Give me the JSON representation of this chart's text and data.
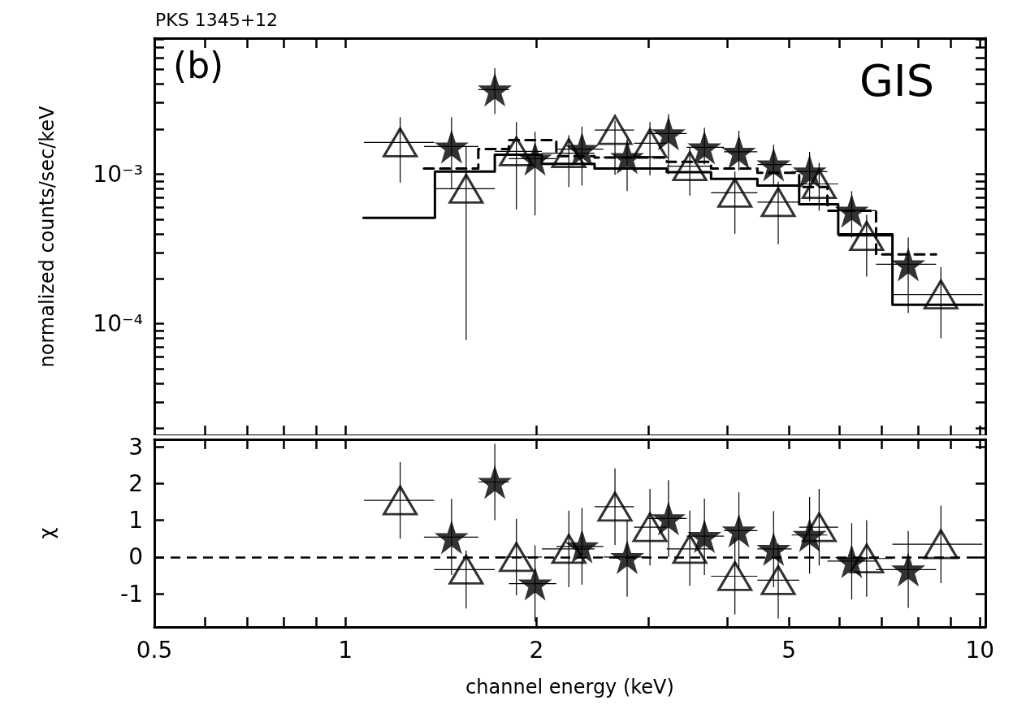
{
  "chart_data": [
    {
      "type": "scatter",
      "title": "PKS 1345+12",
      "ylabel": "normalized counts/sec/keV",
      "annotations": [
        "(b)",
        "GIS"
      ],
      "log": "xy",
      "grid": false,
      "tick_labels": "y",
      "xlim": [
        0.5,
        10.2
      ],
      "xticks": [
        0.5,
        {
          "value": 0.6,
          "label": null
        },
        {
          "value": 0.7,
          "label": null
        },
        {
          "value": 0.8,
          "label": null
        },
        {
          "value": 0.9,
          "label": null
        },
        1,
        2,
        {
          "value": 3,
          "label": null
        },
        {
          "value": 4,
          "label": null
        },
        5,
        {
          "value": 6,
          "label": null
        },
        {
          "value": 7,
          "label": null
        },
        {
          "value": 8,
          "label": null
        },
        {
          "value": 9,
          "label": null
        },
        10
      ],
      "ylim": [
        1.8e-05,
        0.0081
      ],
      "yticks": [
        {
          "value": 2e-05,
          "label": null
        },
        {
          "value": 3e-05,
          "label": null
        },
        {
          "value": 4e-05,
          "label": null
        },
        {
          "value": 5e-05,
          "label": null
        },
        {
          "value": 6e-05,
          "label": null
        },
        {
          "value": 7e-05,
          "label": null
        },
        {
          "value": 8e-05,
          "label": null
        },
        {
          "value": 9e-05,
          "label": null
        },
        {
          "value": 0.0001,
          "label": "10⁻⁴"
        },
        {
          "value": 0.0002,
          "label": null
        },
        {
          "value": 0.0003,
          "label": null
        },
        {
          "value": 0.0004,
          "label": null
        },
        {
          "value": 0.0005,
          "label": null
        },
        {
          "value": 0.0006,
          "label": null
        },
        {
          "value": 0.0007,
          "label": null
        },
        {
          "value": 0.0008,
          "label": null
        },
        {
          "value": 0.0009,
          "label": null
        },
        {
          "value": 0.001,
          "label": "10⁻³"
        },
        {
          "value": 0.002,
          "label": null
        },
        {
          "value": 0.003,
          "label": null
        },
        {
          "value": 0.004,
          "label": null
        },
        {
          "value": 0.005,
          "label": null
        },
        {
          "value": 0.006,
          "label": null
        },
        {
          "value": 0.007,
          "label": null
        },
        {
          "value": 0.008,
          "label": null
        }
      ],
      "series": [
        {
          "type": "step",
          "color": "#000000",
          "line_style": "solid",
          "x": [
            1.068,
            1.384,
            1.72,
            2.04,
            2.47,
            3.21,
            3.77,
            4.46,
            5.19,
            5.98,
            7.28,
            10.09
          ],
          "values": [
            0.00051,
            0.00104,
            0.00135,
            0.00117,
            0.00109,
            0.00103,
            0.00093,
            0.00084,
            0.00063,
            0.000396,
            0.000134,
            0.000134
          ]
        },
        {
          "type": "step",
          "color": "#000000",
          "line_style": "dashed",
          "x": [
            1.33,
            1.62,
            1.81,
            2.15,
            2.47,
            3.21,
            3.77,
            4.46,
            5.19,
            5.75,
            6.86,
            8.53
          ],
          "values": [
            0.00109,
            0.00147,
            0.00169,
            0.00132,
            0.00129,
            0.00121,
            0.00109,
            0.00102,
            0.00082,
            0.00057,
            0.000291,
            0.000291
          ]
        },
        {
          "marker": "triangle",
          "color": "#000000",
          "x": [
            1.22,
            1.55,
            1.86,
            2.25,
            2.66,
            3.02,
            3.49,
            4.11,
            4.81,
            5.58,
            6.63,
            8.68
          ],
          "values": [
            0.00163,
            0.0008,
            0.00142,
            0.00138,
            0.00197,
            0.00161,
            0.00113,
            0.00075,
            0.00065,
            0.00086,
            0.000386,
            0.000157
          ],
          "errors": [
            [
              0.00088,
              0.0024
            ],
            [
              7.8e-05,
              0.00153
            ],
            [
              0.00058,
              0.00223
            ],
            [
              0.00082,
              0.00182
            ],
            [
              0.00099,
              0.00228
            ],
            [
              0.00098,
              0.00223
            ],
            [
              0.00072,
              0.00151
            ],
            [
              0.0004,
              0.00104
            ],
            [
              0.00034,
              0.00089
            ],
            [
              0.00057,
              0.00119
            ],
            [
              0.000207,
              0.000535
            ],
            [
              8e-05,
              0.00024
            ]
          ],
          "xerrors": [
            [
              1.07,
              1.38
            ],
            [
              1.38,
              1.72
            ],
            [
              1.72,
              2.04
            ],
            [
              2.04,
              2.47
            ],
            [
              2.47,
              2.85
            ],
            [
              2.85,
              3.21
            ],
            [
              3.21,
              3.77
            ],
            [
              3.77,
              4.46
            ],
            [
              4.46,
              5.19
            ],
            [
              5.19,
              5.98
            ],
            [
              5.98,
              7.28
            ],
            [
              7.28,
              10.09
            ]
          ]
        },
        {
          "marker": "star",
          "color": "#000000",
          "x": [
            1.47,
            1.72,
            1.99,
            2.36,
            2.78,
            3.23,
            3.68,
            4.17,
            4.73,
            5.39,
            6.28,
            7.71
          ],
          "values": [
            0.00153,
            0.00367,
            0.00127,
            0.00147,
            0.0013,
            0.00187,
            0.00151,
            0.00141,
            0.00116,
            0.00104,
            0.00057,
            0.00025
          ],
          "errors": [
            [
              0.00079,
              0.0024
            ],
            [
              0.00252,
              0.0051
            ],
            [
              0.00053,
              0.00192
            ],
            [
              0.00084,
              0.00208
            ],
            [
              0.00077,
              0.00171
            ],
            [
              0.001,
              0.00252
            ],
            [
              0.00116,
              0.00204
            ],
            [
              0.00106,
              0.00195
            ],
            [
              0.00084,
              0.00157
            ],
            [
              0.00066,
              0.00141
            ],
            [
              0.000377,
              0.00077
            ],
            [
              0.000118,
              0.000377
            ]
          ],
          "xerrors": [
            [
              1.33,
              1.62
            ],
            [
              1.62,
              1.81
            ],
            [
              1.81,
              2.15
            ],
            [
              2.15,
              2.55
            ],
            [
              2.55,
              3.0
            ],
            [
              3.0,
              3.45
            ],
            [
              3.45,
              3.95
            ],
            [
              3.95,
              4.46
            ],
            [
              4.46,
              5.05
            ],
            [
              5.05,
              5.75
            ],
            [
              5.75,
              6.86
            ],
            [
              6.86,
              8.53
            ]
          ]
        }
      ]
    },
    {
      "type": "scatter",
      "xlabel": "channel energy (keV)",
      "ylabel": "χ",
      "log": "x",
      "grid": false,
      "xlim": [
        0.5,
        10.2
      ],
      "xticks": [
        0.5,
        {
          "value": 0.6,
          "label": null
        },
        {
          "value": 0.7,
          "label": null
        },
        {
          "value": 0.8,
          "label": null
        },
        {
          "value": 0.9,
          "label": null
        },
        1,
        2,
        {
          "value": 3,
          "label": null
        },
        {
          "value": 4,
          "label": null
        },
        5,
        {
          "value": 6,
          "label": null
        },
        {
          "value": 7,
          "label": null
        },
        {
          "value": 8,
          "label": null
        },
        {
          "value": 9,
          "label": null
        },
        10
      ],
      "ylim": [
        -1.9,
        3.2
      ],
      "yticks": [
        -1,
        0,
        1,
        2,
        3
      ],
      "ref_lines": [
        {
          "axis": "y",
          "value": 0,
          "color": "#000000",
          "line_style": "dashed"
        }
      ],
      "series": [
        {
          "marker": "triangle",
          "color": "#000000",
          "x": [
            1.22,
            1.55,
            1.86,
            2.25,
            2.66,
            3.02,
            3.49,
            4.11,
            4.81,
            5.58,
            6.63,
            8.68
          ],
          "values": [
            1.54,
            -0.34,
            0.0,
            0.22,
            1.37,
            0.81,
            0.22,
            -0.52,
            -0.63,
            0.81,
            -0.04,
            0.35
          ],
          "errors": [
            [
              0.5,
              2.58
            ],
            [
              -1.4,
              0.18
            ],
            [
              -1.04,
              1.04
            ],
            [
              -0.82,
              1.26
            ],
            [
              0.33,
              2.41
            ],
            [
              -0.23,
              1.85
            ],
            [
              -0.78,
              1.26
            ],
            [
              -1.56,
              0.52
            ],
            [
              -1.67,
              0.37
            ],
            [
              -0.23,
              1.85
            ],
            [
              -1.08,
              1.0
            ],
            [
              -0.71,
              1.4
            ]
          ],
          "xerrors": [
            [
              1.07,
              1.38
            ],
            [
              1.38,
              1.72
            ],
            [
              1.72,
              2.04
            ],
            [
              2.04,
              2.47
            ],
            [
              2.47,
              2.85
            ],
            [
              2.85,
              3.21
            ],
            [
              3.21,
              3.77
            ],
            [
              3.77,
              4.46
            ],
            [
              4.46,
              5.19
            ],
            [
              5.19,
              5.98
            ],
            [
              5.98,
              7.28
            ],
            [
              7.28,
              10.09
            ]
          ]
        },
        {
          "marker": "star",
          "color": "#000000",
          "x": [
            1.47,
            1.72,
            1.99,
            2.36,
            2.78,
            3.23,
            3.68,
            4.17,
            4.73,
            5.39,
            6.28,
            7.71
          ],
          "values": [
            0.54,
            2.04,
            -0.72,
            0.29,
            0.0,
            1.05,
            0.57,
            0.72,
            0.22,
            0.6,
            -0.11,
            -0.34
          ],
          "errors": [
            [
              -0.49,
              1.58
            ],
            [
              1.0,
              3.08
            ],
            [
              -1.76,
              0.32
            ],
            [
              -0.75,
              1.33
            ],
            [
              -1.08,
              1.0
            ],
            [
              0.0,
              2.09
            ],
            [
              -0.49,
              1.59
            ],
            [
              -0.34,
              1.76
            ],
            [
              -0.82,
              1.25
            ],
            [
              -0.45,
              1.63
            ],
            [
              -1.15,
              0.92
            ],
            [
              -1.38,
              0.71
            ]
          ],
          "xerrors": [
            [
              1.33,
              1.62
            ],
            [
              1.62,
              1.81
            ],
            [
              1.81,
              2.15
            ],
            [
              2.15,
              2.55
            ],
            [
              2.55,
              3.0
            ],
            [
              3.0,
              3.45
            ],
            [
              3.45,
              3.95
            ],
            [
              3.95,
              4.46
            ],
            [
              4.46,
              5.05
            ],
            [
              5.05,
              5.75
            ],
            [
              5.75,
              6.86
            ],
            [
              6.86,
              8.53
            ]
          ]
        }
      ]
    }
  ]
}
